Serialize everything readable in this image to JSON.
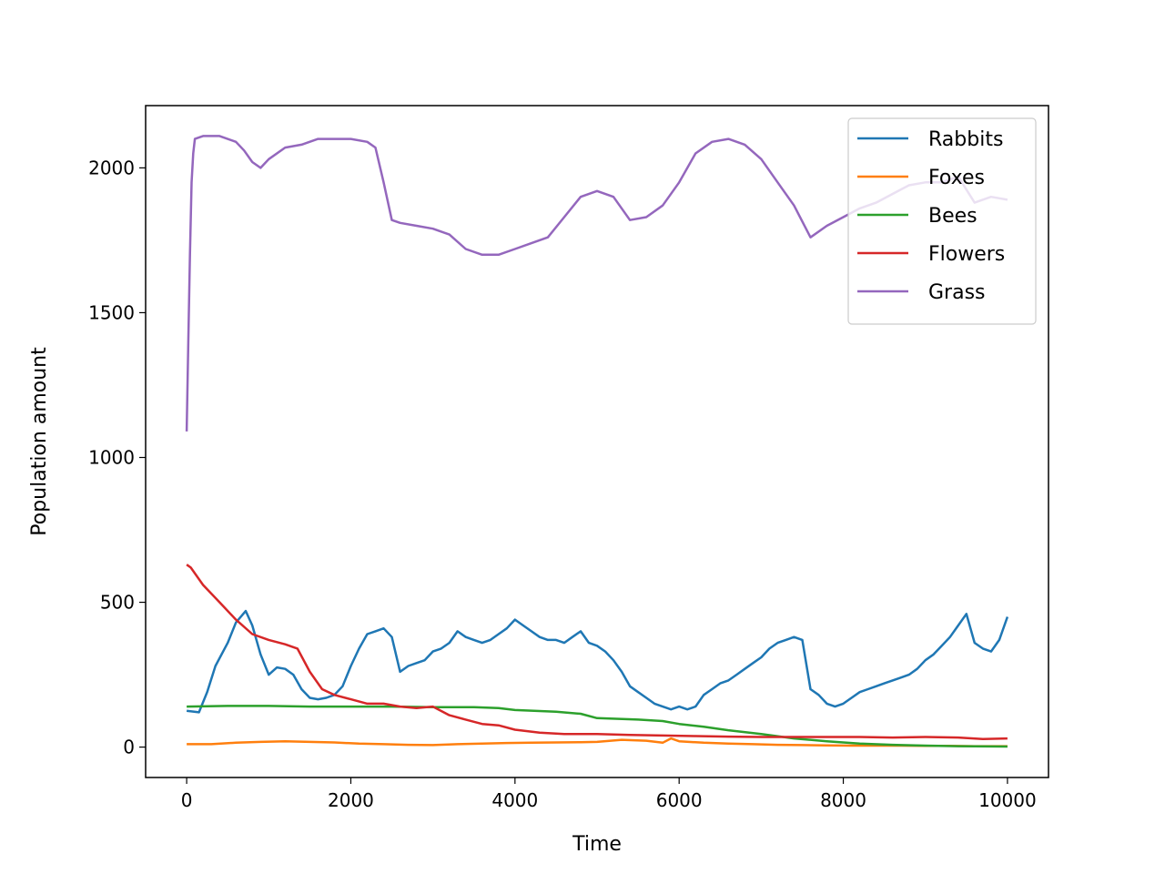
{
  "chart_data": {
    "type": "line",
    "title": "",
    "xlabel": "Time",
    "ylabel": "Population amount",
    "xlim": [
      -500,
      10500
    ],
    "ylim": [
      -105,
      2215
    ],
    "xticks": [
      0,
      2000,
      4000,
      6000,
      8000,
      10000
    ],
    "xtick_labels": [
      "0",
      "2000",
      "4000",
      "6000",
      "8000",
      "10000"
    ],
    "yticks": [
      0,
      500,
      1000,
      1500,
      2000
    ],
    "ytick_labels": [
      "0",
      "500",
      "1000",
      "1500",
      "2000"
    ],
    "grid": false,
    "legend": "top-right",
    "series": [
      {
        "name": "Rabbits",
        "color": "#1f77b4",
        "x": [
          0,
          150,
          250,
          350,
          500,
          600,
          720,
          800,
          900,
          1000,
          1100,
          1200,
          1300,
          1400,
          1500,
          1600,
          1700,
          1800,
          1900,
          2000,
          2100,
          2200,
          2300,
          2400,
          2500,
          2600,
          2700,
          2800,
          2900,
          3000,
          3100,
          3200,
          3300,
          3400,
          3500,
          3600,
          3700,
          3800,
          3900,
          4000,
          4100,
          4200,
          4300,
          4400,
          4500,
          4600,
          4700,
          4800,
          4900,
          5000,
          5100,
          5200,
          5300,
          5400,
          5500,
          5600,
          5700,
          5800,
          5900,
          6000,
          6100,
          6200,
          6300,
          6400,
          6500,
          6600,
          6700,
          6800,
          6900,
          7000,
          7100,
          7200,
          7300,
          7400,
          7500,
          7600,
          7700,
          7800,
          7900,
          8000,
          8100,
          8200,
          8300,
          8400,
          8500,
          8600,
          8700,
          8800,
          8900,
          9000,
          9100,
          9200,
          9300,
          9400,
          9500,
          9600,
          9700,
          9800,
          9900,
          10000
        ],
        "y": [
          125,
          120,
          190,
          280,
          360,
          430,
          470,
          420,
          320,
          250,
          275,
          270,
          250,
          200,
          170,
          165,
          170,
          180,
          210,
          280,
          340,
          390,
          400,
          410,
          380,
          260,
          280,
          290,
          300,
          330,
          340,
          360,
          400,
          380,
          370,
          360,
          370,
          390,
          410,
          440,
          420,
          400,
          380,
          370,
          370,
          360,
          380,
          400,
          360,
          350,
          330,
          300,
          260,
          210,
          190,
          170,
          150,
          140,
          130,
          140,
          130,
          140,
          180,
          200,
          220,
          230,
          250,
          270,
          290,
          310,
          340,
          360,
          370,
          380,
          370,
          200,
          180,
          150,
          140,
          150,
          170,
          190,
          200,
          210,
          220,
          230,
          240,
          250,
          270,
          300,
          320,
          350,
          380,
          420,
          460,
          360,
          340,
          330,
          370,
          450
        ]
      },
      {
        "name": "Foxes",
        "color": "#ff7f0e",
        "x": [
          0,
          300,
          600,
          900,
          1200,
          1500,
          1800,
          2100,
          2400,
          2700,
          3000,
          3300,
          3600,
          3900,
          4200,
          4500,
          4800,
          5000,
          5300,
          5600,
          5800,
          5900,
          6000,
          6300,
          6600,
          6900,
          7200,
          7500,
          7800,
          8100,
          8400,
          8700,
          9000,
          9300,
          9600,
          10000
        ],
        "y": [
          10,
          10,
          15,
          18,
          20,
          18,
          16,
          12,
          10,
          8,
          7,
          10,
          12,
          14,
          15,
          16,
          17,
          18,
          25,
          22,
          15,
          30,
          20,
          15,
          12,
          10,
          8,
          7,
          6,
          5,
          5,
          5,
          4,
          4,
          3,
          3
        ]
      },
      {
        "name": "Bees",
        "color": "#2ca02c",
        "x": [
          0,
          500,
          1000,
          1500,
          2000,
          2500,
          3000,
          3500,
          3800,
          4000,
          4500,
          4800,
          5000,
          5500,
          5800,
          6000,
          6300,
          6600,
          7000,
          7400,
          7800,
          8200,
          8600,
          9000,
          9400,
          10000
        ],
        "y": [
          140,
          142,
          142,
          140,
          140,
          140,
          138,
          138,
          135,
          128,
          122,
          115,
          100,
          95,
          90,
          80,
          70,
          58,
          45,
          30,
          20,
          12,
          8,
          5,
          3,
          2
        ]
      },
      {
        "name": "Flowers",
        "color": "#d62728",
        "x": [
          0,
          50,
          200,
          400,
          600,
          800,
          1000,
          1200,
          1350,
          1500,
          1650,
          1800,
          2000,
          2200,
          2400,
          2600,
          2800,
          3000,
          3200,
          3400,
          3600,
          3800,
          4000,
          4300,
          4600,
          5000,
          5400,
          5800,
          6200,
          6600,
          7000,
          7400,
          7800,
          8200,
          8600,
          9000,
          9400,
          9700,
          10000
        ],
        "y": [
          630,
          620,
          560,
          500,
          440,
          390,
          370,
          355,
          340,
          260,
          200,
          180,
          165,
          150,
          150,
          140,
          135,
          140,
          110,
          95,
          80,
          75,
          60,
          50,
          45,
          45,
          42,
          40,
          38,
          36,
          35,
          35,
          35,
          35,
          33,
          35,
          33,
          28,
          30
        ]
      },
      {
        "name": "Grass",
        "color": "#9467bd",
        "x": [
          0,
          20,
          40,
          60,
          80,
          100,
          200,
          400,
          600,
          700,
          800,
          900,
          1000,
          1200,
          1400,
          1600,
          1800,
          2000,
          2200,
          2300,
          2400,
          2500,
          2600,
          2800,
          3000,
          3200,
          3400,
          3600,
          3800,
          4000,
          4200,
          4400,
          4600,
          4800,
          5000,
          5200,
          5400,
          5600,
          5800,
          6000,
          6200,
          6400,
          6600,
          6800,
          7000,
          7200,
          7400,
          7600,
          7800,
          8000,
          8200,
          8400,
          8600,
          8800,
          9000,
          9200,
          9400,
          9600,
          9800,
          10000
        ],
        "y": [
          1090,
          1400,
          1700,
          1950,
          2050,
          2100,
          2110,
          2110,
          2090,
          2060,
          2020,
          2000,
          2030,
          2070,
          2080,
          2100,
          2100,
          2100,
          2090,
          2070,
          1950,
          1820,
          1810,
          1800,
          1790,
          1770,
          1720,
          1700,
          1700,
          1720,
          1740,
          1760,
          1830,
          1900,
          1920,
          1900,
          1820,
          1830,
          1870,
          1950,
          2050,
          2090,
          2100,
          2080,
          2030,
          1950,
          1870,
          1760,
          1800,
          1830,
          1860,
          1880,
          1910,
          1940,
          1950,
          1950,
          1970,
          1880,
          1900,
          1890
        ]
      }
    ]
  }
}
